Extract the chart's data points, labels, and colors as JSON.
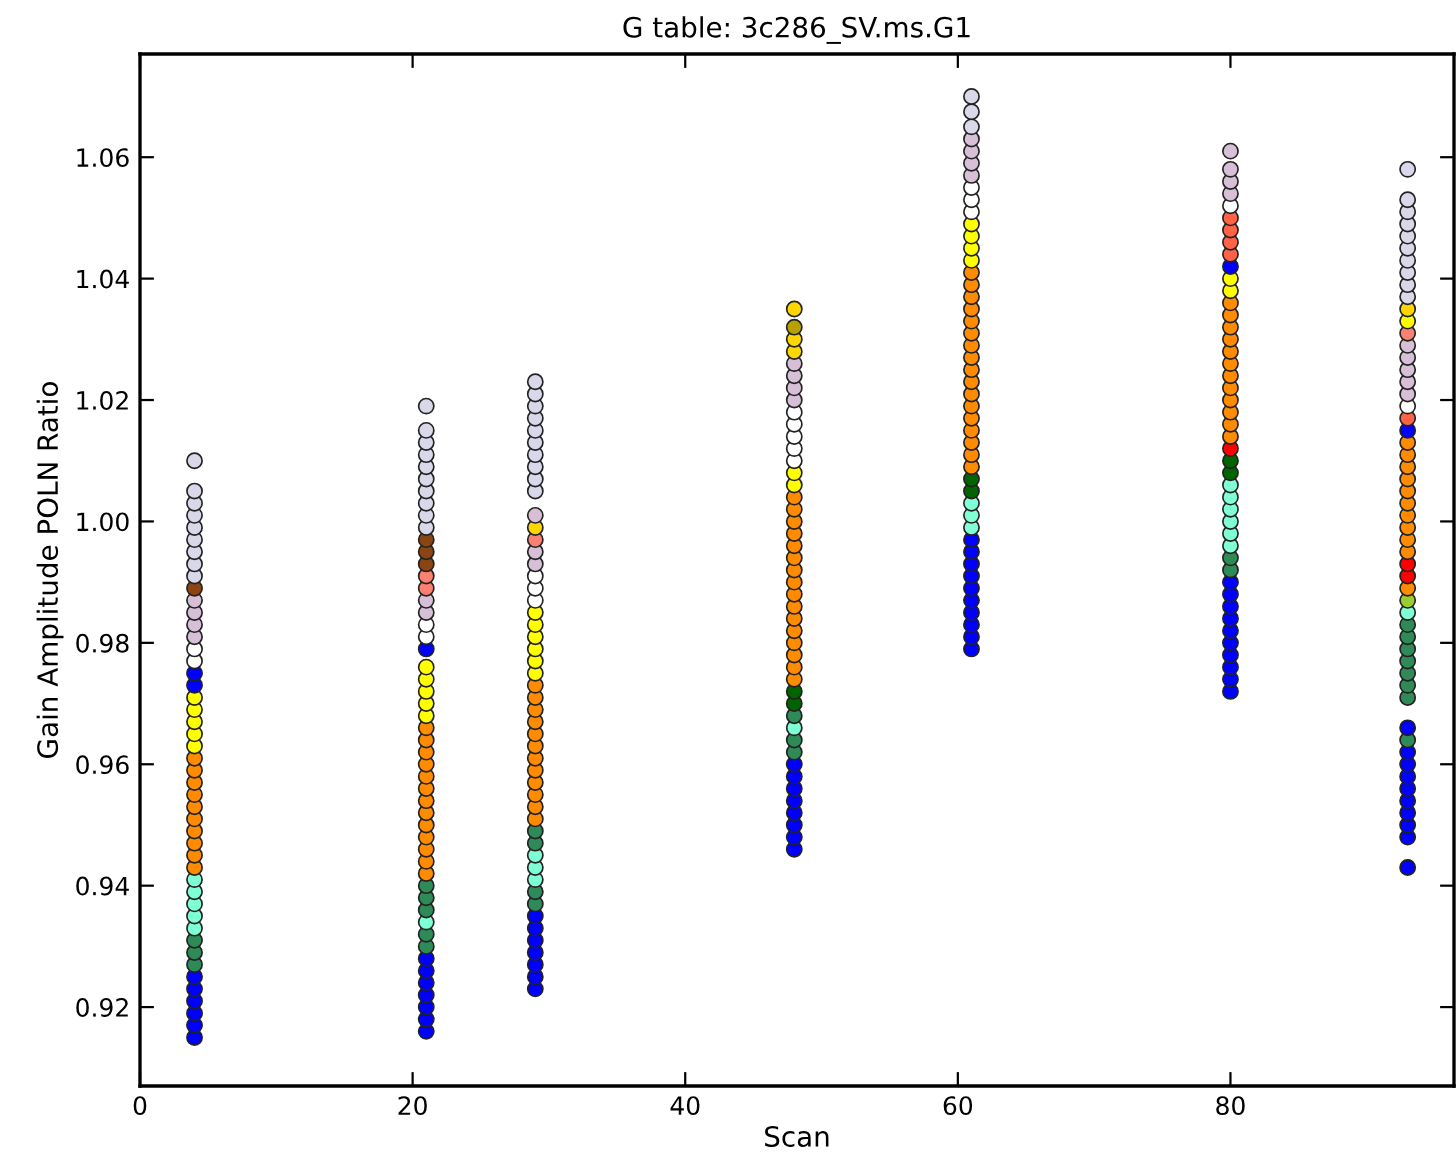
{
  "chart_data": {
    "type": "scatter",
    "title": "G table: 3c286_SV.ms.G1",
    "xlabel": "Scan",
    "ylabel": "Gain Amplitude POLN Ratio",
    "xlim": [
      0,
      96.4
    ],
    "ylim": [
      0.907,
      1.077
    ],
    "xticks": [
      0,
      20,
      40,
      60,
      80
    ],
    "yticks": [
      {
        "value": 0.92,
        "label": "0.92"
      },
      {
        "value": 0.94,
        "label": "0.94"
      },
      {
        "value": 0.96,
        "label": "0.96"
      },
      {
        "value": 0.98,
        "label": "0.98"
      },
      {
        "value": 1.0,
        "label": "1.00"
      },
      {
        "value": 1.02,
        "label": "1.02"
      },
      {
        "value": 1.04,
        "label": "1.04"
      },
      {
        "value": 1.06,
        "label": "1.06"
      }
    ],
    "grid": false,
    "marker": "circle",
    "series": [
      {
        "x": [
          4,
          4,
          4,
          4,
          4,
          4,
          4,
          4,
          4,
          4,
          4,
          4,
          4,
          4,
          4,
          4,
          4,
          4,
          4,
          4,
          4,
          4,
          4,
          4,
          4,
          4,
          4,
          4,
          4,
          4,
          4,
          4,
          4,
          4,
          4,
          4,
          4,
          4,
          4,
          4,
          4,
          4,
          4,
          4,
          4,
          4,
          4
        ],
        "values": [
          0.915,
          0.917,
          0.919,
          0.921,
          0.923,
          0.925,
          0.927,
          0.929,
          0.931,
          0.933,
          0.935,
          0.937,
          0.939,
          0.941,
          0.943,
          0.945,
          0.947,
          0.949,
          0.951,
          0.953,
          0.955,
          0.957,
          0.959,
          0.961,
          0.963,
          0.965,
          0.967,
          0.969,
          0.971,
          0.973,
          0.975,
          0.977,
          0.979,
          0.981,
          0.983,
          0.985,
          0.987,
          0.989,
          0.991,
          0.993,
          0.995,
          0.997,
          0.999,
          1.001,
          1.003,
          1.005,
          1.01
        ],
        "colors": [
          "#0000ff",
          "#0000ff",
          "#0000ff",
          "#0000ff",
          "#0000ff",
          "#0000ff",
          "#2e8b57",
          "#2e8b57",
          "#2e8b57",
          "#7fffd4",
          "#7fffd4",
          "#7fffd4",
          "#7fffd4",
          "#7fffd4",
          "#ff8c00",
          "#ff8c00",
          "#ff8c00",
          "#ff8c00",
          "#ff8c00",
          "#ff8c00",
          "#ff8c00",
          "#ff8c00",
          "#ff8c00",
          "#ff8c00",
          "#ffff00",
          "#ffff00",
          "#ffff00",
          "#ffff00",
          "#ffff00",
          "#0000ff",
          "#0000ff",
          "#ffffff",
          "#ffffff",
          "#d8bfd8",
          "#d8bfd8",
          "#d8bfd8",
          "#d8bfd8",
          "#8b4513",
          "#d8d8ea",
          "#d8d8ea",
          "#d8d8ea",
          "#d8d8ea",
          "#d8d8ea",
          "#d8d8ea",
          "#d8d8ea",
          "#d8d8ea",
          "#d8d8ea"
        ]
      },
      {
        "x": [
          21,
          21,
          21,
          21,
          21,
          21,
          21,
          21,
          21,
          21,
          21,
          21,
          21,
          21,
          21,
          21,
          21,
          21,
          21,
          21,
          21,
          21,
          21,
          21,
          21,
          21,
          21,
          21,
          21,
          21,
          21,
          21,
          21,
          21,
          21,
          21,
          21,
          21,
          21,
          21,
          21,
          21,
          21,
          21,
          21,
          21,
          21,
          21,
          21,
          21,
          21
        ],
        "values": [
          0.916,
          0.918,
          0.92,
          0.922,
          0.924,
          0.926,
          0.928,
          0.93,
          0.932,
          0.934,
          0.936,
          0.938,
          0.94,
          0.942,
          0.944,
          0.946,
          0.948,
          0.95,
          0.952,
          0.954,
          0.956,
          0.958,
          0.96,
          0.962,
          0.964,
          0.966,
          0.968,
          0.97,
          0.972,
          0.974,
          0.976,
          0.979,
          0.981,
          0.983,
          0.985,
          0.987,
          0.989,
          0.991,
          0.993,
          0.995,
          0.997,
          0.999,
          1.001,
          1.003,
          1.005,
          1.007,
          1.009,
          1.011,
          1.013,
          1.015,
          1.019
        ],
        "colors": [
          "#0000ff",
          "#0000ff",
          "#0000ff",
          "#0000ff",
          "#0000ff",
          "#0000ff",
          "#0000ff",
          "#2e8b57",
          "#2e8b57",
          "#7fffd4",
          "#2e8b57",
          "#2e8b57",
          "#2e8b57",
          "#ff8c00",
          "#ff8c00",
          "#ff8c00",
          "#ff8c00",
          "#ff8c00",
          "#ff8c00",
          "#ff8c00",
          "#ff8c00",
          "#ff8c00",
          "#ff8c00",
          "#ff8c00",
          "#ff8c00",
          "#ff8c00",
          "#ffff00",
          "#ffff00",
          "#ffff00",
          "#ffff00",
          "#ffff00",
          "#0000ff",
          "#ffffff",
          "#ffffff",
          "#d8bfd8",
          "#d8bfd8",
          "#fa8072",
          "#fa8072",
          "#8b4513",
          "#8b4513",
          "#8b4513",
          "#d8d8ea",
          "#d8d8ea",
          "#d8d8ea",
          "#d8d8ea",
          "#d8d8ea",
          "#d8d8ea",
          "#d8d8ea",
          "#d8d8ea",
          "#d8d8ea",
          "#d8d8ea"
        ]
      },
      {
        "x": [
          29,
          29,
          29,
          29,
          29,
          29,
          29,
          29,
          29,
          29,
          29,
          29,
          29,
          29,
          29,
          29,
          29,
          29,
          29,
          29,
          29,
          29,
          29,
          29,
          29,
          29,
          29,
          29,
          29,
          29,
          29,
          29,
          29,
          29,
          29,
          29,
          29,
          29,
          29,
          29,
          29,
          29,
          29,
          29,
          29,
          29,
          29,
          29,
          29,
          29
        ],
        "values": [
          0.923,
          0.925,
          0.927,
          0.929,
          0.931,
          0.933,
          0.935,
          0.937,
          0.939,
          0.941,
          0.943,
          0.945,
          0.947,
          0.949,
          0.951,
          0.953,
          0.955,
          0.957,
          0.959,
          0.961,
          0.963,
          0.965,
          0.967,
          0.969,
          0.971,
          0.973,
          0.975,
          0.977,
          0.979,
          0.981,
          0.983,
          0.985,
          0.987,
          0.989,
          0.991,
          0.993,
          0.995,
          0.997,
          0.999,
          1.001,
          1.005,
          1.007,
          1.009,
          1.011,
          1.013,
          1.015,
          1.017,
          1.019,
          1.021,
          1.023
        ],
        "colors": [
          "#0000ff",
          "#0000ff",
          "#0000ff",
          "#0000ff",
          "#0000ff",
          "#0000ff",
          "#0000ff",
          "#2e8b57",
          "#2e8b57",
          "#7fffd4",
          "#7fffd4",
          "#7fffd4",
          "#2e8b57",
          "#2e8b57",
          "#ff8c00",
          "#ff8c00",
          "#ff8c00",
          "#ff8c00",
          "#ff8c00",
          "#ff8c00",
          "#ff8c00",
          "#ff8c00",
          "#ff8c00",
          "#ff8c00",
          "#ff8c00",
          "#ff8c00",
          "#ffff00",
          "#ffff00",
          "#ffff00",
          "#ffff00",
          "#ffff00",
          "#ffff00",
          "#ffffff",
          "#ffffff",
          "#ffffff",
          "#d8bfd8",
          "#d8bfd8",
          "#fa8072",
          "#ffd700",
          "#d8bfd8",
          "#d8d8ea",
          "#d8d8ea",
          "#d8d8ea",
          "#d8d8ea",
          "#d8d8ea",
          "#d8d8ea",
          "#d8d8ea",
          "#d8d8ea",
          "#d8d8ea",
          "#d8d8ea"
        ]
      },
      {
        "x": [
          48,
          48,
          48,
          48,
          48,
          48,
          48,
          48,
          48,
          48,
          48,
          48,
          48,
          48,
          48,
          48,
          48,
          48,
          48,
          48,
          48,
          48,
          48,
          48,
          48,
          48,
          48,
          48,
          48,
          48,
          48,
          48,
          48,
          48,
          48,
          48,
          48,
          48,
          48,
          48,
          48,
          48,
          48,
          48,
          48
        ],
        "values": [
          0.946,
          0.948,
          0.95,
          0.952,
          0.954,
          0.956,
          0.958,
          0.96,
          0.962,
          0.964,
          0.966,
          0.968,
          0.97,
          0.972,
          0.974,
          0.976,
          0.978,
          0.98,
          0.982,
          0.984,
          0.986,
          0.988,
          0.99,
          0.992,
          0.994,
          0.996,
          0.998,
          1.0,
          1.002,
          1.004,
          1.006,
          1.008,
          1.01,
          1.012,
          1.014,
          1.016,
          1.018,
          1.02,
          1.022,
          1.024,
          1.026,
          1.028,
          1.03,
          1.032,
          1.035
        ],
        "colors": [
          "#0000ff",
          "#0000ff",
          "#0000ff",
          "#0000ff",
          "#0000ff",
          "#0000ff",
          "#0000ff",
          "#0000ff",
          "#2e8b57",
          "#2e8b57",
          "#7fffd4",
          "#2e8b57",
          "#006400",
          "#006400",
          "#ff8c00",
          "#ff8c00",
          "#ff8c00",
          "#ff8c00",
          "#ff8c00",
          "#ff8c00",
          "#ff8c00",
          "#ff8c00",
          "#ff8c00",
          "#ff8c00",
          "#ff8c00",
          "#ff8c00",
          "#ff8c00",
          "#ff8c00",
          "#ff8c00",
          "#ff8c00",
          "#ffff00",
          "#ffff00",
          "#ffffff",
          "#ffffff",
          "#ffffff",
          "#ffffff",
          "#ffffff",
          "#d8bfd8",
          "#d8bfd8",
          "#d8bfd8",
          "#d8bfd8",
          "#ffd700",
          "#ffd700",
          "#b8a000",
          "#ffd700"
        ]
      },
      {
        "x": [
          61,
          61,
          61,
          61,
          61,
          61,
          61,
          61,
          61,
          61,
          61,
          61,
          61,
          61,
          61,
          61,
          61,
          61,
          61,
          61,
          61,
          61,
          61,
          61,
          61,
          61,
          61,
          61,
          61,
          61,
          61,
          61,
          61,
          61,
          61,
          61,
          61,
          61,
          61,
          61,
          61,
          61,
          61,
          61,
          61,
          61
        ],
        "values": [
          0.979,
          0.981,
          0.983,
          0.985,
          0.987,
          0.989,
          0.991,
          0.993,
          0.995,
          0.997,
          0.999,
          1.001,
          1.003,
          1.005,
          1.007,
          1.009,
          1.011,
          1.013,
          1.015,
          1.017,
          1.019,
          1.021,
          1.023,
          1.025,
          1.027,
          1.029,
          1.031,
          1.033,
          1.035,
          1.037,
          1.039,
          1.041,
          1.043,
          1.045,
          1.047,
          1.049,
          1.051,
          1.053,
          1.055,
          1.057,
          1.059,
          1.061,
          1.063,
          1.065,
          1.0675,
          1.07
        ],
        "colors": [
          "#0000ff",
          "#0000ff",
          "#0000ff",
          "#0000ff",
          "#0000ff",
          "#0000ff",
          "#0000ff",
          "#0000ff",
          "#0000ff",
          "#0000ff",
          "#7fffd4",
          "#7fffd4",
          "#7fffd4",
          "#006400",
          "#006400",
          "#ff8c00",
          "#ff8c00",
          "#ff8c00",
          "#ff8c00",
          "#ff8c00",
          "#ff8c00",
          "#ff8c00",
          "#ff8c00",
          "#ff8c00",
          "#ff8c00",
          "#ff8c00",
          "#ff8c00",
          "#ff8c00",
          "#ff8c00",
          "#ff8c00",
          "#ff8c00",
          "#ff8c00",
          "#ffff00",
          "#ffff00",
          "#ffff00",
          "#ffff00",
          "#ffffff",
          "#ffffff",
          "#ffffff",
          "#d8bfd8",
          "#d8bfd8",
          "#d8bfd8",
          "#d8bfd8",
          "#d8d8ea",
          "#d8d8ea",
          "#d8d8ea"
        ]
      },
      {
        "x": [
          80,
          80,
          80,
          80,
          80,
          80,
          80,
          80,
          80,
          80,
          80,
          80,
          80,
          80,
          80,
          80,
          80,
          80,
          80,
          80,
          80,
          80,
          80,
          80,
          80,
          80,
          80,
          80,
          80,
          80,
          80,
          80,
          80,
          80,
          80,
          80,
          80,
          80,
          80,
          80,
          80,
          80,
          80,
          80,
          80
        ],
        "values": [
          0.972,
          0.974,
          0.976,
          0.978,
          0.98,
          0.982,
          0.984,
          0.986,
          0.988,
          0.99,
          0.992,
          0.994,
          0.996,
          0.998,
          1.0,
          1.002,
          1.004,
          1.006,
          1.008,
          1.01,
          1.012,
          1.014,
          1.016,
          1.018,
          1.02,
          1.022,
          1.024,
          1.026,
          1.028,
          1.03,
          1.032,
          1.034,
          1.036,
          1.038,
          1.04,
          1.042,
          1.044,
          1.046,
          1.048,
          1.05,
          1.052,
          1.054,
          1.056,
          1.058,
          1.061
        ],
        "colors": [
          "#0000ff",
          "#0000ff",
          "#0000ff",
          "#0000ff",
          "#0000ff",
          "#0000ff",
          "#0000ff",
          "#0000ff",
          "#0000ff",
          "#0000ff",
          "#2e8b57",
          "#2e8b57",
          "#7fffd4",
          "#7fffd4",
          "#7fffd4",
          "#7fffd4",
          "#7fffd4",
          "#7fffd4",
          "#006400",
          "#006400",
          "#ff0000",
          "#ff8c00",
          "#ff8c00",
          "#ff8c00",
          "#ff8c00",
          "#ff8c00",
          "#ff8c00",
          "#ff8c00",
          "#ff8c00",
          "#ff8c00",
          "#ff8c00",
          "#ff8c00",
          "#ff8c00",
          "#ffff00",
          "#ffff00",
          "#0000ff",
          "#ff6347",
          "#ff6347",
          "#ff6347",
          "#ff6347",
          "#ffffff",
          "#d8bfd8",
          "#d8bfd8",
          "#d8bfd8",
          "#d8bfd8"
        ]
      },
      {
        "x": [
          93,
          93,
          93,
          93,
          93,
          93,
          93,
          93,
          93,
          93,
          93,
          93,
          93,
          93,
          93,
          93,
          93,
          93,
          93,
          93,
          93,
          93,
          93,
          93,
          93,
          93,
          93,
          93,
          93,
          93,
          93,
          93,
          93,
          93,
          93,
          93,
          93,
          93,
          93,
          93,
          93,
          93,
          93,
          93,
          93,
          93,
          93,
          93,
          93,
          93,
          93,
          93,
          93,
          93
        ],
        "values": [
          0.943,
          0.948,
          0.95,
          0.952,
          0.954,
          0.956,
          0.958,
          0.96,
          0.962,
          0.964,
          0.966,
          0.971,
          0.973,
          0.975,
          0.977,
          0.979,
          0.981,
          0.983,
          0.985,
          0.987,
          0.989,
          0.991,
          0.993,
          0.995,
          0.997,
          0.999,
          1.001,
          1.003,
          1.005,
          1.007,
          1.009,
          1.011,
          1.013,
          1.015,
          1.017,
          1.019,
          1.021,
          1.023,
          1.025,
          1.027,
          1.029,
          1.031,
          1.033,
          1.035,
          1.037,
          1.039,
          1.041,
          1.043,
          1.045,
          1.047,
          1.049,
          1.051,
          1.053,
          1.058
        ],
        "colors": [
          "#0000ff",
          "#0000ff",
          "#0000ff",
          "#0000ff",
          "#0000ff",
          "#0000ff",
          "#0000ff",
          "#0000ff",
          "#0000ff",
          "#2e8b57",
          "#0000ff",
          "#2e8b57",
          "#2e8b57",
          "#2e8b57",
          "#2e8b57",
          "#2e8b57",
          "#2e8b57",
          "#2e8b57",
          "#7fffd4",
          "#9acd32",
          "#ff8c00",
          "#ff0000",
          "#ff0000",
          "#ff8c00",
          "#ff8c00",
          "#ff8c00",
          "#ff8c00",
          "#ff8c00",
          "#ff8c00",
          "#ff8c00",
          "#ff8c00",
          "#ff8c00",
          "#ff8c00",
          "#0000ff",
          "#ff6347",
          "#ffffff",
          "#d8bfd8",
          "#d8bfd8",
          "#d8bfd8",
          "#d8bfd8",
          "#d8bfd8",
          "#fa8072",
          "#ffff00",
          "#ffd700",
          "#d8d8ea",
          "#d8d8ea",
          "#d8d8ea",
          "#d8d8ea",
          "#d8d8ea",
          "#d8d8ea",
          "#d8d8ea",
          "#d8d8ea",
          "#d8d8ea",
          "#d8d8ea"
        ]
      }
    ]
  }
}
